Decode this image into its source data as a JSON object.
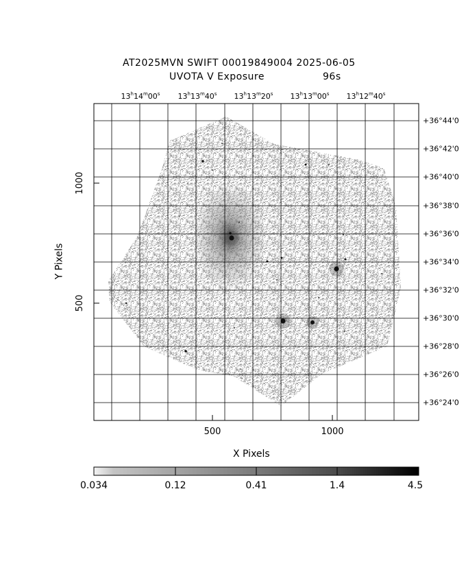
{
  "title": {
    "line1": "AT2025MVN SWIFT 00019849004 2025-06-05",
    "line2_left": "UVOTA V Exposure",
    "line2_right": "96s"
  },
  "axes": {
    "x_label": "X Pixels",
    "y_label": "Y Pixels",
    "x_ticks": [
      "500",
      "1000"
    ],
    "y_ticks": [
      "500",
      "1000"
    ]
  },
  "ra_ticks": [
    {
      "h": "13",
      "m": "14",
      "s": "00"
    },
    {
      "h": "13",
      "m": "13",
      "s": "40"
    },
    {
      "h": "13",
      "m": "13",
      "s": "20"
    },
    {
      "h": "13",
      "m": "13",
      "s": "00"
    },
    {
      "h": "13",
      "m": "12",
      "s": "40"
    }
  ],
  "dec_ticks": [
    "+36°44'0",
    "+36°42'0",
    "+36°40'0",
    "+36°38'0",
    "+36°36'0",
    "+36°34'0",
    "+36°32'0",
    "+36°30'0",
    "+36°28'0",
    "+36°26'0",
    "+36°24'0"
  ],
  "colorbar": {
    "ticks": [
      "0.034",
      "0.12",
      "0.41",
      "1.4",
      "4.5"
    ]
  },
  "colors": {
    "frame": "#000000",
    "grid": "#000000",
    "background": "#ffffff",
    "noise": "#8c8c8c"
  }
}
